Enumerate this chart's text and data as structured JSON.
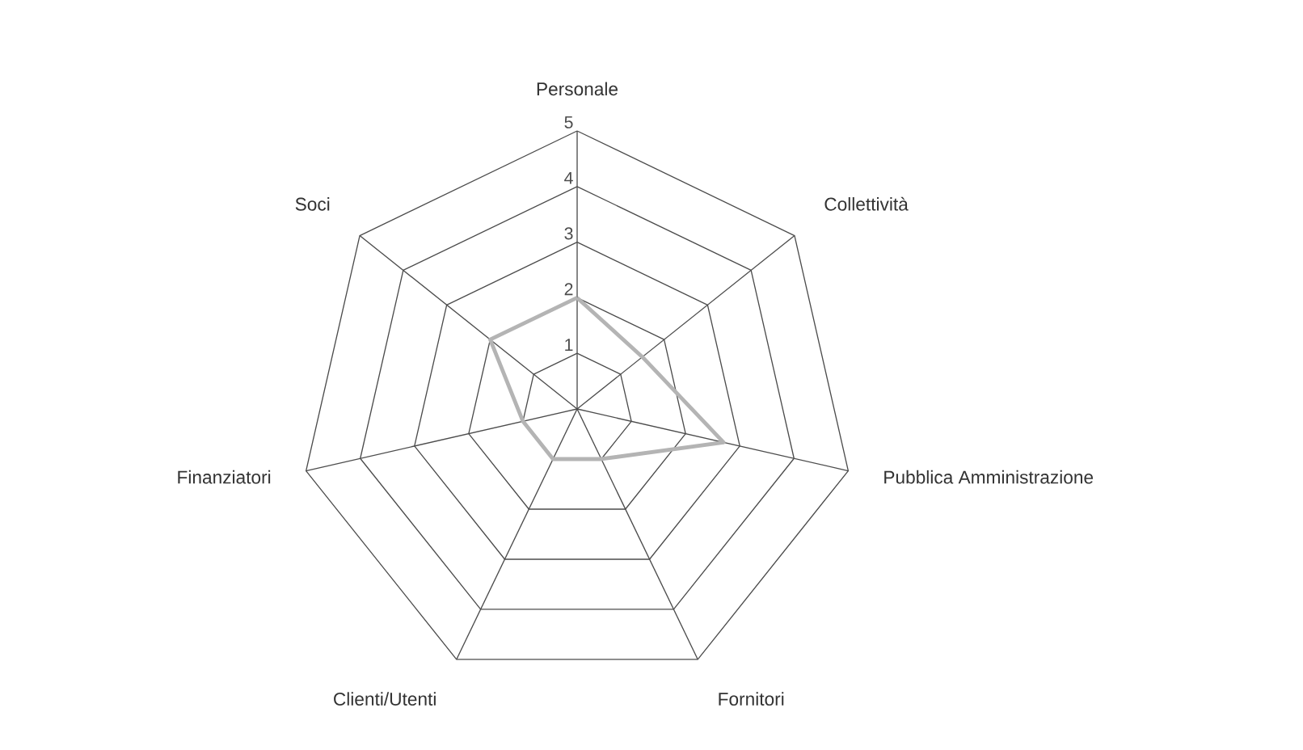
{
  "chart_data": {
    "type": "radar",
    "categories": [
      "Personale",
      "Collettività",
      "Pubblica Amministrazione",
      "Fornitori",
      "Clienti/Utenti",
      "Finanziatori",
      "Soci"
    ],
    "series": [
      {
        "color": "#b4b4b4",
        "values": [
          2,
          1.5,
          2.7,
          1,
          1,
          1,
          2
        ]
      }
    ],
    "ylim": [
      0,
      5
    ],
    "yticks": [
      1,
      2,
      3,
      4,
      5
    ]
  }
}
